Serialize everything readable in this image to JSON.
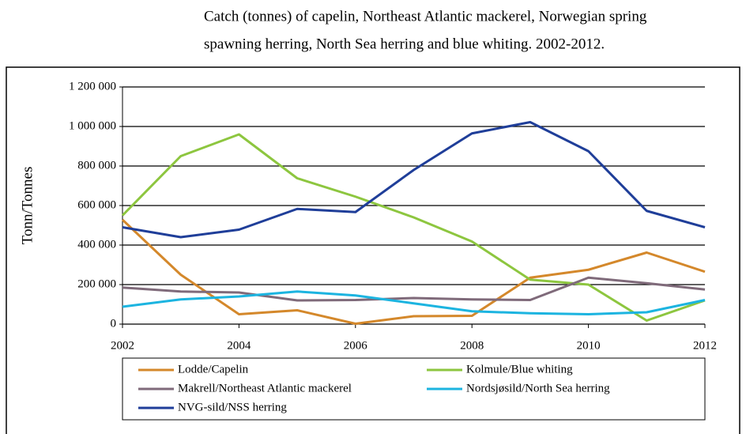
{
  "caption": [
    "Catch (tonnes) of capelin, Northeast Atlantic mackerel, Norwegian spring",
    "spawning herring, North Sea herring and blue whiting. 2002-2012."
  ],
  "chart_data": {
    "type": "line",
    "y_label": "Tonn/Tonnes",
    "x": [
      2002,
      2003,
      2004,
      2005,
      2006,
      2007,
      2008,
      2009,
      2010,
      2011,
      2012
    ],
    "xlim": [
      2002,
      2012
    ],
    "xticks": [
      2002,
      2004,
      2006,
      2008,
      2010,
      2012
    ],
    "ylim": [
      0,
      1200000
    ],
    "yticks": [
      0,
      {
        "value": 200000,
        "label": "200 000"
      },
      {
        "value": 400000,
        "label": "400 000"
      },
      {
        "value": 600000,
        "label": "600 000"
      },
      {
        "value": 800000,
        "label": "800 000"
      },
      {
        "value": 1000000,
        "label": "1 000 000"
      },
      {
        "value": 1200000,
        "label": "1 200 000"
      }
    ],
    "grid": true,
    "series": [
      {
        "name": "Lodde/Capelin",
        "color": "#d4882b",
        "values": [
          528000,
          250000,
          50000,
          70000,
          2000,
          40000,
          42000,
          235000,
          275000,
          362000,
          265000
        ]
      },
      {
        "name": "Kolmule/Blue whiting",
        "color": "#8dc63f",
        "values": [
          550000,
          850000,
          960000,
          738000,
          645000,
          540000,
          418000,
          225000,
          200000,
          18000,
          120000
        ]
      },
      {
        "name": "Makrell/Northeast Atlantic mackerel",
        "color": "#7f6a7a",
        "values": [
          185000,
          165000,
          160000,
          120000,
          122000,
          132000,
          125000,
          122000,
          235000,
          207000,
          175000
        ]
      },
      {
        "name": "Nordsjøsild/North Sea herring",
        "color": "#1cb4e0",
        "values": [
          88000,
          125000,
          140000,
          165000,
          145000,
          105000,
          65000,
          55000,
          50000,
          60000,
          122000
        ]
      },
      {
        "name": "NVG-sild/NSS herring",
        "color": "#1f3e99",
        "values": [
          490000,
          440000,
          478000,
          583000,
          567000,
          780000,
          965000,
          1022000,
          875000,
          573000,
          490000
        ]
      }
    ]
  }
}
